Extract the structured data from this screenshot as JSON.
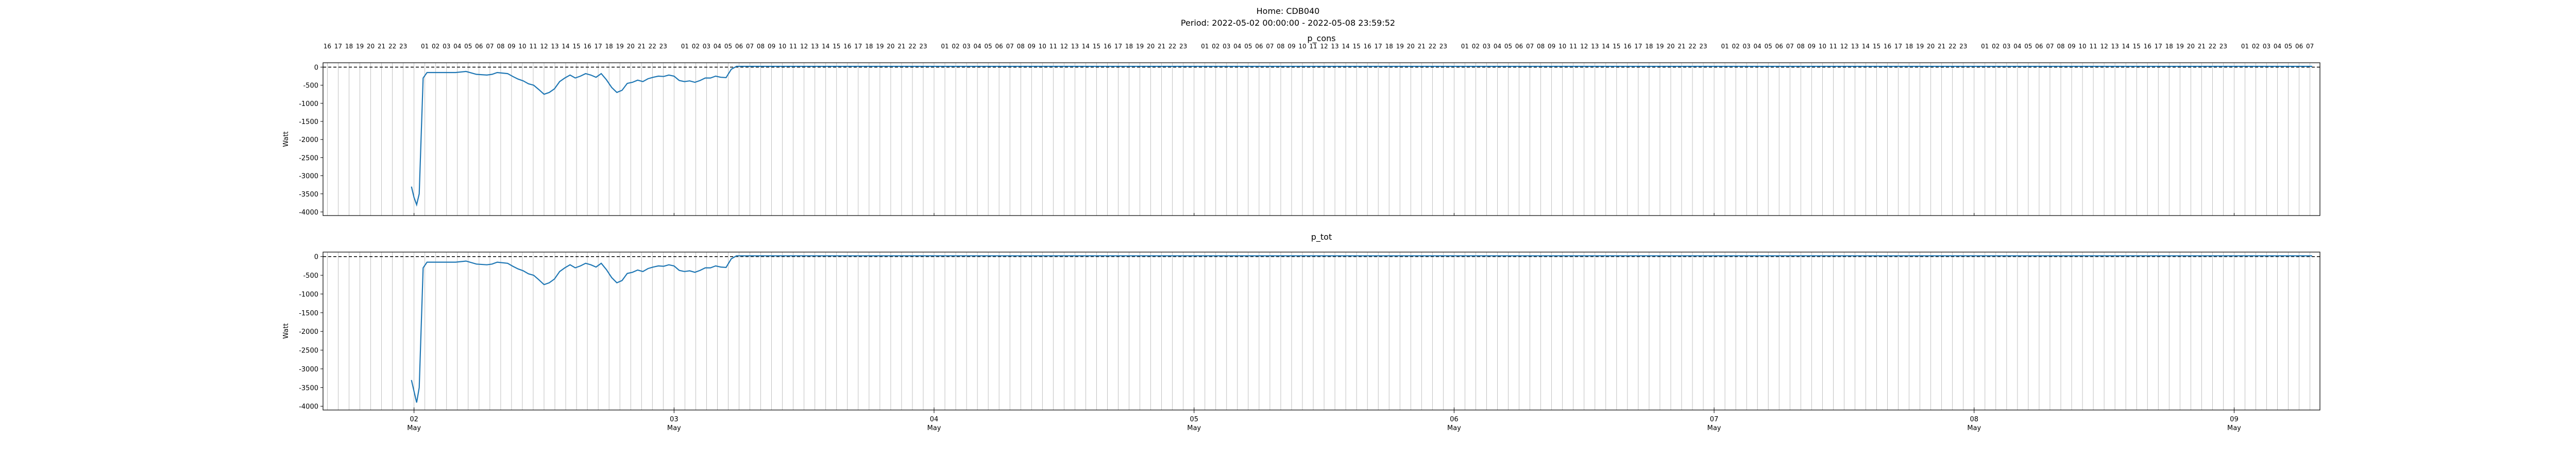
{
  "figure": {
    "title_line1": "Home: CDB040",
    "title_line2": "Period: 2022-05-02 00:00:00 - 2022-05-08 23:59:52"
  },
  "chart_data": [
    {
      "type": "line",
      "title": "p_cons",
      "ylabel": "Watt",
      "ylim": [
        -4100,
        120
      ],
      "yticks": [
        0,
        -500,
        -1000,
        -1500,
        -2000,
        -2500,
        -3000,
        -3500,
        -4000
      ],
      "xlim_days": [
        -0.35,
        7.33
      ],
      "grid": "hour-lines",
      "reference_line": 0,
      "series": [
        {
          "color": "#1f77b4",
          "points": [
            [
              -0.01,
              -3300
            ],
            [
              0.0,
              -3600
            ],
            [
              0.01,
              -3800
            ],
            [
              0.02,
              -3500
            ],
            [
              0.035,
              -300
            ],
            [
              0.05,
              -150
            ],
            [
              0.08,
              -150
            ],
            [
              0.12,
              -150
            ],
            [
              0.16,
              -150
            ],
            [
              0.2,
              -120
            ],
            [
              0.24,
              -200
            ],
            [
              0.28,
              -220
            ],
            [
              0.3,
              -200
            ],
            [
              0.32,
              -150
            ],
            [
              0.36,
              -180
            ],
            [
              0.38,
              -260
            ],
            [
              0.4,
              -330
            ],
            [
              0.42,
              -380
            ],
            [
              0.44,
              -460
            ],
            [
              0.46,
              -500
            ],
            [
              0.48,
              -620
            ],
            [
              0.5,
              -750
            ],
            [
              0.52,
              -700
            ],
            [
              0.54,
              -600
            ],
            [
              0.56,
              -400
            ],
            [
              0.58,
              -300
            ],
            [
              0.6,
              -220
            ],
            [
              0.62,
              -300
            ],
            [
              0.64,
              -250
            ],
            [
              0.66,
              -180
            ],
            [
              0.68,
              -220
            ],
            [
              0.7,
              -280
            ],
            [
              0.72,
              -180
            ],
            [
              0.74,
              -350
            ],
            [
              0.76,
              -560
            ],
            [
              0.78,
              -700
            ],
            [
              0.8,
              -640
            ],
            [
              0.82,
              -450
            ],
            [
              0.84,
              -420
            ],
            [
              0.86,
              -360
            ],
            [
              0.88,
              -400
            ],
            [
              0.9,
              -320
            ],
            [
              0.92,
              -280
            ],
            [
              0.94,
              -250
            ],
            [
              0.96,
              -260
            ],
            [
              0.98,
              -220
            ],
            [
              1.0,
              -250
            ],
            [
              1.02,
              -370
            ],
            [
              1.04,
              -400
            ],
            [
              1.06,
              -380
            ],
            [
              1.08,
              -420
            ],
            [
              1.1,
              -370
            ],
            [
              1.12,
              -300
            ],
            [
              1.14,
              -300
            ],
            [
              1.16,
              -250
            ],
            [
              1.18,
              -280
            ],
            [
              1.2,
              -290
            ],
            [
              1.22,
              -60
            ],
            [
              1.24,
              20
            ],
            [
              1.3,
              20
            ],
            [
              2.0,
              20
            ],
            [
              3.0,
              20
            ],
            [
              4.0,
              20
            ],
            [
              5.0,
              20
            ],
            [
              6.0,
              20
            ],
            [
              7.0,
              20
            ],
            [
              7.3,
              20
            ]
          ]
        }
      ]
    },
    {
      "type": "line",
      "title": "p_tot",
      "ylabel": "Watt",
      "ylim": [
        -4100,
        120
      ],
      "yticks": [
        0,
        -500,
        -1000,
        -1500,
        -2000,
        -2500,
        -3000,
        -3500,
        -4000
      ],
      "xlim_days": [
        -0.35,
        7.33
      ],
      "grid": "hour-lines",
      "reference_line": 0,
      "x_major_ticks": [
        {
          "day": 0,
          "label": "02",
          "sub": "May"
        },
        {
          "day": 1,
          "label": "03",
          "sub": "May"
        },
        {
          "day": 2,
          "label": "04",
          "sub": "May"
        },
        {
          "day": 3,
          "label": "05",
          "sub": "May"
        },
        {
          "day": 4,
          "label": "06",
          "sub": "May"
        },
        {
          "day": 5,
          "label": "07",
          "sub": "May"
        },
        {
          "day": 6,
          "label": "08",
          "sub": "May"
        },
        {
          "day": 7,
          "label": "09",
          "sub": "May"
        }
      ],
      "series": [
        {
          "color": "#1f77b4",
          "points": [
            [
              -0.01,
              -3300
            ],
            [
              0.0,
              -3600
            ],
            [
              0.01,
              -3900
            ],
            [
              0.02,
              -3500
            ],
            [
              0.035,
              -300
            ],
            [
              0.05,
              -150
            ],
            [
              0.08,
              -150
            ],
            [
              0.12,
              -150
            ],
            [
              0.16,
              -150
            ],
            [
              0.2,
              -120
            ],
            [
              0.24,
              -200
            ],
            [
              0.28,
              -220
            ],
            [
              0.3,
              -200
            ],
            [
              0.32,
              -150
            ],
            [
              0.36,
              -180
            ],
            [
              0.38,
              -260
            ],
            [
              0.4,
              -330
            ],
            [
              0.42,
              -380
            ],
            [
              0.44,
              -460
            ],
            [
              0.46,
              -500
            ],
            [
              0.48,
              -620
            ],
            [
              0.5,
              -750
            ],
            [
              0.52,
              -700
            ],
            [
              0.54,
              -600
            ],
            [
              0.56,
              -400
            ],
            [
              0.58,
              -300
            ],
            [
              0.6,
              -220
            ],
            [
              0.62,
              -300
            ],
            [
              0.64,
              -250
            ],
            [
              0.66,
              -180
            ],
            [
              0.68,
              -220
            ],
            [
              0.7,
              -280
            ],
            [
              0.72,
              -180
            ],
            [
              0.74,
              -350
            ],
            [
              0.76,
              -560
            ],
            [
              0.78,
              -700
            ],
            [
              0.8,
              -640
            ],
            [
              0.82,
              -450
            ],
            [
              0.84,
              -420
            ],
            [
              0.86,
              -360
            ],
            [
              0.88,
              -400
            ],
            [
              0.9,
              -320
            ],
            [
              0.92,
              -280
            ],
            [
              0.94,
              -250
            ],
            [
              0.96,
              -260
            ],
            [
              0.98,
              -220
            ],
            [
              1.0,
              -250
            ],
            [
              1.02,
              -370
            ],
            [
              1.04,
              -400
            ],
            [
              1.06,
              -380
            ],
            [
              1.08,
              -420
            ],
            [
              1.1,
              -370
            ],
            [
              1.12,
              -300
            ],
            [
              1.14,
              -300
            ],
            [
              1.16,
              -250
            ],
            [
              1.18,
              -280
            ],
            [
              1.2,
              -290
            ],
            [
              1.22,
              -60
            ],
            [
              1.24,
              20
            ],
            [
              1.3,
              20
            ],
            [
              2.0,
              20
            ],
            [
              3.0,
              20
            ],
            [
              4.0,
              20
            ],
            [
              5.0,
              20
            ],
            [
              6.0,
              20
            ],
            [
              7.0,
              20
            ],
            [
              7.3,
              20
            ]
          ]
        }
      ]
    }
  ],
  "top_hour_labels": {
    "start_hour": 16,
    "hours_after_last_day": 8
  }
}
